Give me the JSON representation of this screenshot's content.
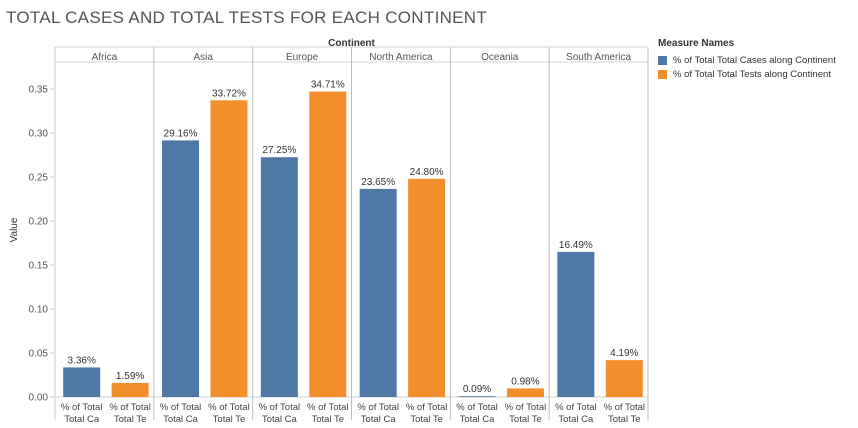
{
  "chart_data": {
    "type": "bar",
    "title": "TOTAL CASES AND TOTAL TESTS FOR EACH CONTINENT",
    "column_header": "Continent",
    "ylabel": "Value",
    "ylim": [
      0,
      0.37
    ],
    "yticks": [
      "0.00",
      "0.05",
      "0.10",
      "0.15",
      "0.20",
      "0.25",
      "0.30",
      "0.35"
    ],
    "categories": [
      "Africa",
      "Asia",
      "Europe",
      "North America",
      "Oceania",
      "South America"
    ],
    "bar_tick_labels": [
      [
        "% of Total",
        "Total Ca"
      ],
      [
        "% of Total",
        "Total Te"
      ]
    ],
    "legend_title": "Measure Names",
    "legend_position": "top-right",
    "grid": false,
    "series": [
      {
        "name": "% of Total Total Cases along Continent",
        "color": "#4e79a7",
        "values": [
          0.0336,
          0.2916,
          0.2725,
          0.2365,
          0.0009,
          0.1649
        ],
        "labels": [
          "3.36%",
          "29.16%",
          "27.25%",
          "23.65%",
          "0.09%",
          "16.49%"
        ]
      },
      {
        "name": "% of Total Total Tests along Continent",
        "color": "#f28e2b",
        "values": [
          0.0159,
          0.3372,
          0.3471,
          0.248,
          0.0098,
          0.0419
        ],
        "labels": [
          "1.59%",
          "33.72%",
          "34.71%",
          "24.80%",
          "0.98%",
          "4.19%"
        ]
      }
    ]
  }
}
